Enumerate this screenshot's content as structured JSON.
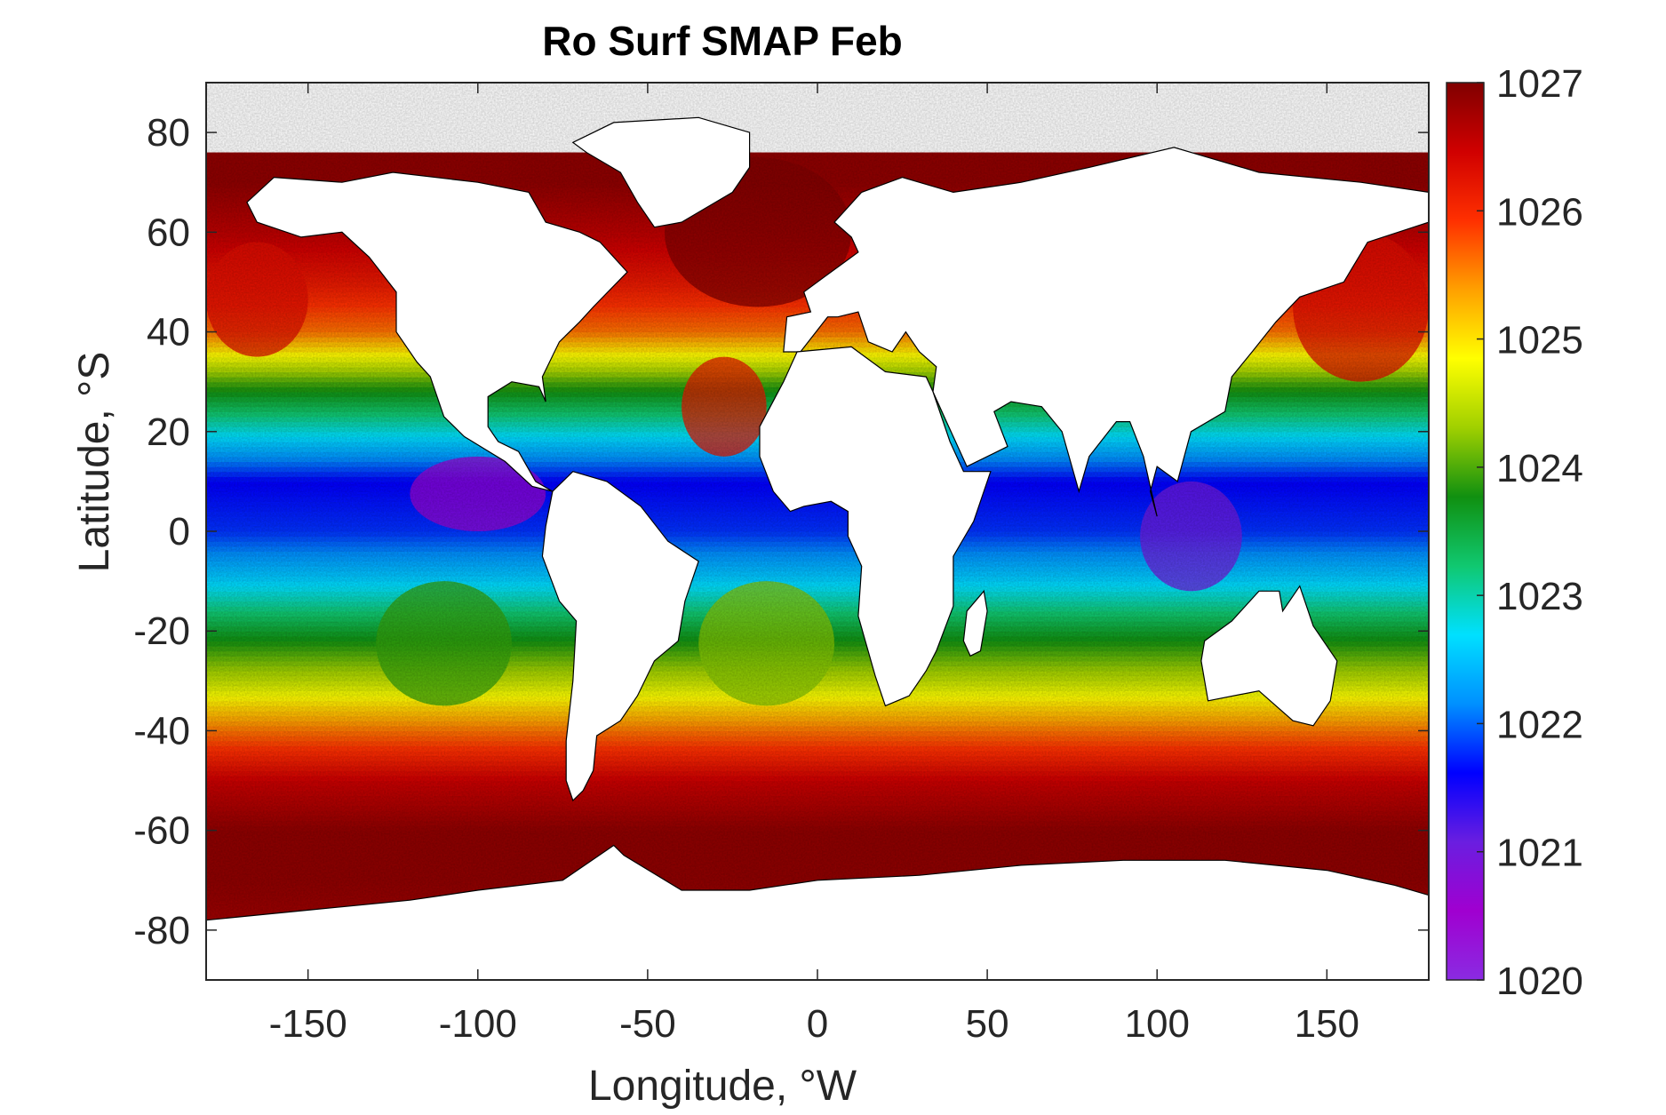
{
  "chart_data": {
    "type": "heatmap",
    "title": "Ro Surf SMAP Feb",
    "xlabel": "Longitude, °W",
    "ylabel": "Latitude, °S",
    "xlim": [
      -180,
      180
    ],
    "ylim": [
      -90,
      90
    ],
    "xticks": [
      -150,
      -100,
      -50,
      0,
      50,
      100,
      150
    ],
    "yticks": [
      80,
      60,
      40,
      20,
      0,
      -20,
      -40,
      -60,
      -80
    ],
    "xtick_labels": [
      "-150",
      "-100",
      "-50",
      "0",
      "50",
      "100",
      "150"
    ],
    "ytick_labels": [
      "80",
      "60",
      "40",
      "20",
      "0",
      "-20",
      "-40",
      "-60",
      "-80"
    ],
    "colorbar": {
      "range": [
        1020,
        1027
      ],
      "ticks": [
        1027,
        1026,
        1025,
        1024,
        1023,
        1022,
        1021,
        1020
      ],
      "tick_labels": [
        "1027",
        "1026",
        "1025",
        "1024",
        "1023",
        "1022",
        "1021",
        "1020"
      ],
      "colormap": [
        "#8a2be2",
        "#a000d0",
        "#6a1ee0",
        "#0000ff",
        "#0090ff",
        "#00e0ff",
        "#10c870",
        "#109010",
        "#a0d000",
        "#ffff00",
        "#ffa000",
        "#ff3000",
        "#d00000",
        "#800000"
      ]
    },
    "zonal_profile": {
      "lat": [
        -78,
        -70,
        -60,
        -50,
        -40,
        -30,
        -20,
        -10,
        0,
        10,
        20,
        30,
        40,
        50,
        60,
        70
      ],
      "value": [
        1026.8,
        1026.9,
        1026.9,
        1026.5,
        1025.6,
        1024.5,
        1023.6,
        1022.6,
        1021.8,
        1021.6,
        1022.8,
        1024.0,
        1025.6,
        1026.2,
        1026.6,
        1026.9
      ]
    },
    "grid": false
  }
}
